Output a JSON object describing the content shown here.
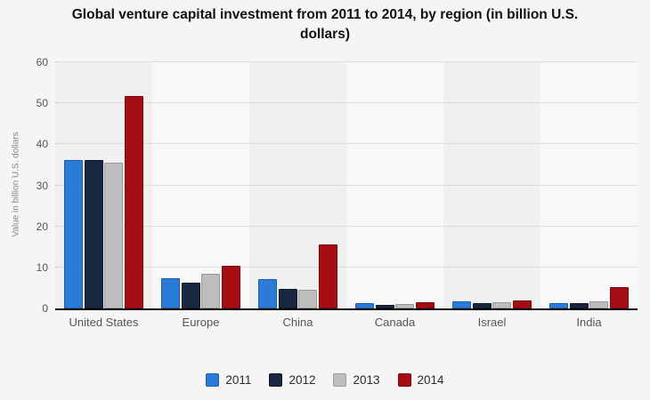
{
  "title": {
    "text": "Global venture capital investment from 2011 to 2014, by region (in billion U.S. dollars)"
  },
  "chart_data": {
    "type": "bar",
    "title": "Global venture capital investment from 2011 to 2014, by region (in billion U.S. dollars)",
    "xlabel": "",
    "ylabel": "Value in billion U.S. dollars",
    "ylim": [
      0,
      60
    ],
    "yticks": [
      0,
      10,
      20,
      30,
      40,
      50,
      60
    ],
    "grid": "horizontal-dotted",
    "legend_position": "bottom",
    "categories": [
      "United States",
      "Europe",
      "China",
      "Canada",
      "Israel",
      "India"
    ],
    "series": [
      {
        "name": "2011",
        "color": "#2b7bd9",
        "border_color": "#1b5fae",
        "values": [
          36.2,
          7.4,
          7.2,
          1.2,
          1.8,
          1.4
        ]
      },
      {
        "name": "2012",
        "color": "#18273f",
        "border_color": "#0e1a2c",
        "values": [
          36.2,
          6.3,
          4.8,
          0.8,
          1.2,
          1.3
        ]
      },
      {
        "name": "2013",
        "color": "#bdbdbd",
        "border_color": "#9a9a9a",
        "values": [
          35.5,
          8.5,
          4.6,
          1.0,
          1.5,
          1.8
        ]
      },
      {
        "name": "2014",
        "color": "#a50d12",
        "border_color": "#7c0a0e",
        "values": [
          51.7,
          10.5,
          15.5,
          1.5,
          1.9,
          5.2
        ]
      }
    ],
    "band_colors": [
      "#f0f0f1",
      "#f8f8f8"
    ]
  }
}
